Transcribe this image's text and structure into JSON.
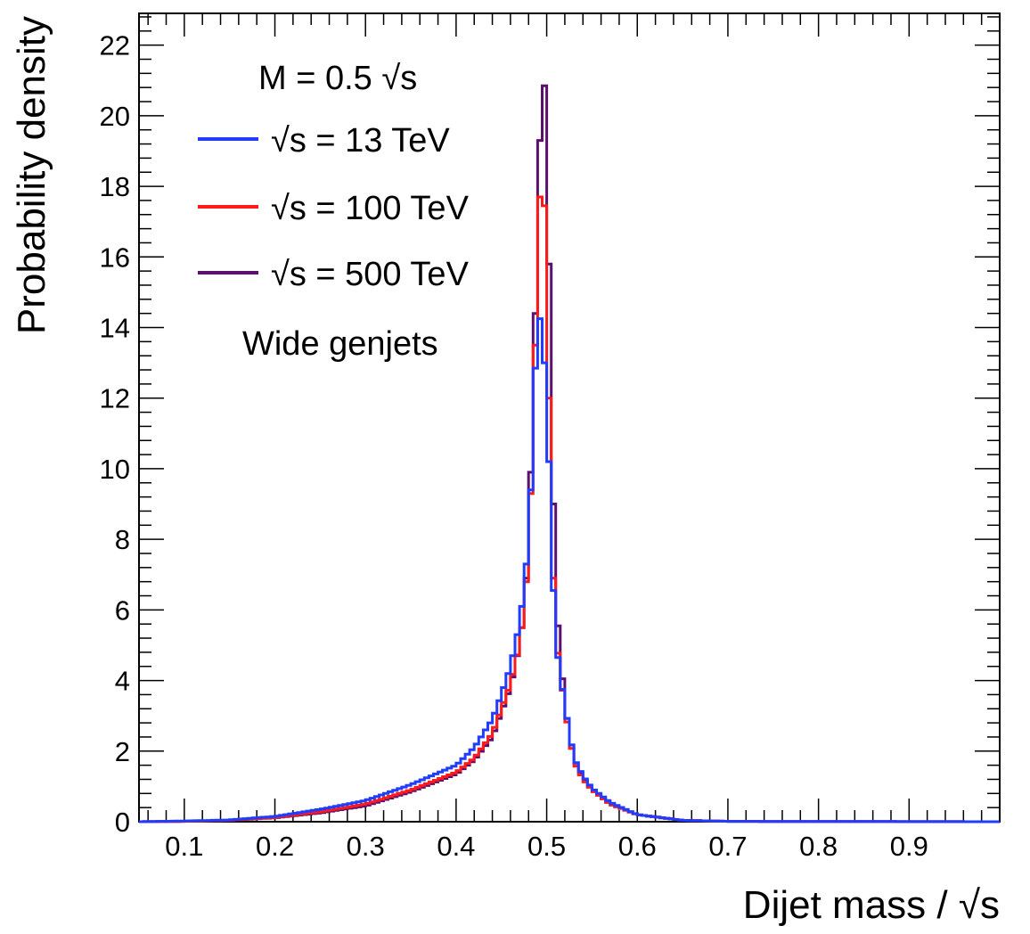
{
  "chart_data": {
    "type": "line",
    "title": "",
    "xlabel": "Dijet mass / √s",
    "ylabel": "Probability density",
    "xlim": [
      0.05,
      1.0
    ],
    "ylim": [
      0,
      22.9
    ],
    "x_ticks": [
      "0.1",
      "0.2",
      "0.3",
      "0.4",
      "0.5",
      "0.6",
      "0.7",
      "0.8",
      "0.9"
    ],
    "y_ticks": [
      "0",
      "2",
      "4",
      "6",
      "8",
      "10",
      "12",
      "14",
      "16",
      "18",
      "20",
      "22"
    ],
    "grid": false,
    "legend_placement": "top-left",
    "legend_header": "M = 0.5 √s",
    "annotation": "Wide genjets",
    "series": [
      {
        "name": "√s = 13 TeV",
        "color": "#1f3cff",
        "x": [
          0.05,
          0.1,
          0.15,
          0.2,
          0.25,
          0.3,
          0.35,
          0.4,
          0.42,
          0.44,
          0.45,
          0.46,
          0.47,
          0.475,
          0.48,
          0.485,
          0.49,
          0.495,
          0.5,
          0.505,
          0.51,
          0.52,
          0.53,
          0.54,
          0.55,
          0.57,
          0.6,
          0.65,
          0.7,
          1.0
        ],
        "values": [
          0.0,
          0.02,
          0.05,
          0.15,
          0.35,
          0.6,
          1.05,
          1.6,
          2.1,
          2.9,
          3.6,
          4.4,
          5.6,
          6.6,
          8.0,
          10.8,
          14.9,
          13.6,
          12.4,
          8.0,
          5.1,
          3.3,
          1.8,
          1.3,
          0.95,
          0.55,
          0.2,
          0.04,
          0.01,
          0.0
        ]
      },
      {
        "name": "√s = 100 TeV",
        "color": "#ff1a1a",
        "x": [
          0.05,
          0.1,
          0.15,
          0.2,
          0.25,
          0.3,
          0.35,
          0.4,
          0.42,
          0.44,
          0.45,
          0.46,
          0.47,
          0.475,
          0.48,
          0.485,
          0.49,
          0.495,
          0.5,
          0.505,
          0.51,
          0.52,
          0.53,
          0.54,
          0.55,
          0.57,
          0.6,
          0.65,
          0.7,
          1.0
        ],
        "values": [
          0.0,
          0.01,
          0.04,
          0.12,
          0.28,
          0.5,
          0.9,
          1.4,
          1.8,
          2.5,
          3.2,
          3.9,
          5.0,
          6.0,
          7.6,
          11.0,
          16.0,
          19.4,
          15.5,
          8.5,
          5.3,
          3.2,
          1.7,
          1.2,
          0.9,
          0.5,
          0.2,
          0.04,
          0.01,
          0.0
        ]
      },
      {
        "name": "√s = 500 TeV",
        "color": "#5c0f6e",
        "x": [
          0.05,
          0.1,
          0.15,
          0.2,
          0.25,
          0.3,
          0.35,
          0.4,
          0.42,
          0.44,
          0.45,
          0.46,
          0.47,
          0.475,
          0.48,
          0.485,
          0.49,
          0.495,
          0.5,
          0.505,
          0.51,
          0.52,
          0.53,
          0.54,
          0.55,
          0.57,
          0.6,
          0.65,
          0.7,
          1.0
        ],
        "values": [
          0.0,
          0.01,
          0.04,
          0.11,
          0.25,
          0.45,
          0.85,
          1.35,
          1.75,
          2.4,
          3.1,
          3.8,
          5.0,
          6.0,
          7.8,
          12.0,
          16.8,
          21.8,
          19.9,
          11.7,
          6.3,
          3.3,
          1.8,
          1.25,
          0.9,
          0.5,
          0.2,
          0.04,
          0.01,
          0.0
        ]
      }
    ]
  }
}
